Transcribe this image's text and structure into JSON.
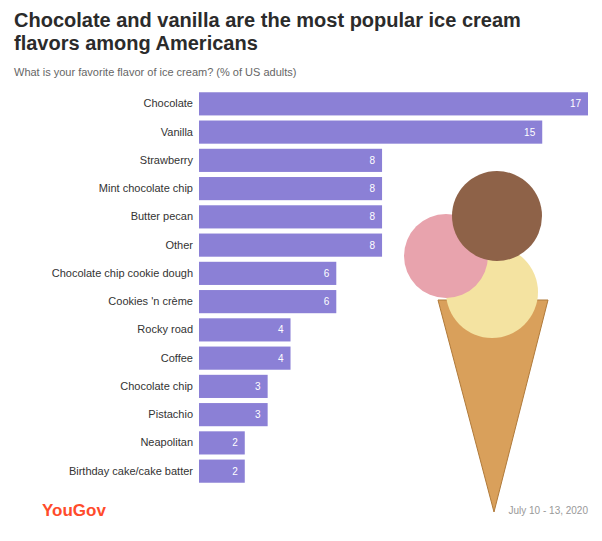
{
  "chart_data": {
    "type": "bar",
    "orientation": "horizontal",
    "title": "Chocolate and vanilla are the most popular ice cream flavors among Americans",
    "subtitle": "What is your favorite flavor of ice cream? (% of US adults)",
    "categories": [
      "Chocolate",
      "Vanilla",
      "Strawberry",
      "Mint chocolate chip",
      "Butter pecan",
      "Other",
      "Chocolate chip cookie dough",
      "Cookies 'n crème",
      "Rocky road",
      "Coffee",
      "Chocolate chip",
      "Pistachio",
      "Neapolitan",
      "Birthday cake/cake batter"
    ],
    "values": [
      17,
      15,
      8,
      8,
      8,
      8,
      6,
      6,
      4,
      4,
      3,
      3,
      2,
      2
    ],
    "color": "#8b80d6",
    "xlim": [
      0,
      17
    ],
    "data_labels": true,
    "tick_labels": "y",
    "annotations": [
      "YouGov",
      "July 10 - 13, 2020"
    ]
  }
}
